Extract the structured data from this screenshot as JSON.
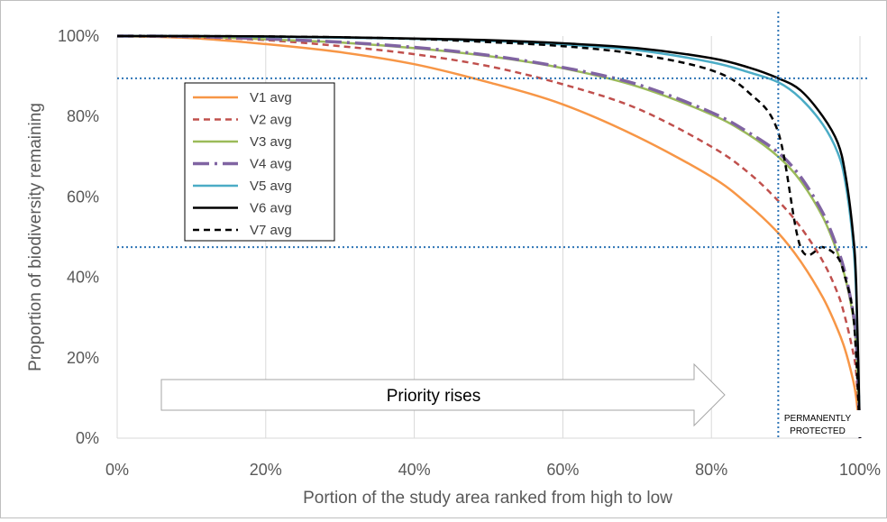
{
  "chart_data": {
    "type": "line",
    "title": "",
    "xlabel": "Portion of the study area ranked from high to low",
    "ylabel": "Proportion of biodiversity remaining",
    "xlim": [
      0,
      100
    ],
    "ylim": [
      0,
      100
    ],
    "x_ticks": [
      "0%",
      "20%",
      "40%",
      "60%",
      "80%",
      "100%"
    ],
    "y_ticks": [
      "0%",
      "20%",
      "40%",
      "60%",
      "80%",
      "100%"
    ],
    "grid": "vertical",
    "legend_position": "upper-left",
    "x": [
      0,
      10,
      20,
      30,
      40,
      50,
      60,
      70,
      80,
      85,
      89,
      92,
      95,
      97,
      98,
      99,
      99.5,
      100
    ],
    "series": [
      {
        "name": "V1 avg",
        "color": "#f79646",
        "dash": "solid",
        "values": [
          100,
          99.5,
          98,
          96,
          93,
          88.5,
          83,
          75,
          65,
          58,
          51,
          44,
          35,
          27,
          22,
          15,
          10,
          0
        ]
      },
      {
        "name": "V2 avg",
        "color": "#c0504d",
        "dash": "dash",
        "values": [
          100,
          99.7,
          99,
          97.5,
          95.5,
          92.5,
          88,
          82,
          72.5,
          66,
          59,
          52.5,
          44,
          36,
          30,
          22,
          16,
          0
        ]
      },
      {
        "name": "V3 avg",
        "color": "#9bbb59",
        "dash": "solid",
        "values": [
          100,
          99.9,
          99.2,
          98.4,
          97,
          95,
          92,
          87.5,
          80.5,
          75.5,
          70,
          64,
          55,
          46,
          40,
          31,
          22,
          0
        ]
      },
      {
        "name": "V4 avg",
        "color": "#8064a2",
        "dash": "longdashdot",
        "values": [
          100,
          99.9,
          99.3,
          98.5,
          97.2,
          95.2,
          92.2,
          88,
          81,
          76,
          71,
          65,
          56,
          47,
          41,
          32,
          24,
          0
        ]
      },
      {
        "name": "V5 avg",
        "color": "#4bacc6",
        "dash": "solid",
        "values": [
          100,
          100,
          99.8,
          99.6,
          99.3,
          98.8,
          97.9,
          96.5,
          93.5,
          91,
          88.5,
          84.5,
          78,
          71,
          64,
          50,
          35,
          0
        ]
      },
      {
        "name": "V6 avg",
        "color": "#000000",
        "dash": "solid",
        "values": [
          100,
          100,
          99.9,
          99.7,
          99.4,
          99,
          98.2,
          97,
          94.5,
          92.2,
          89.5,
          86.5,
          80,
          73.5,
          66,
          52,
          38,
          0
        ]
      },
      {
        "name": "V7 avg",
        "color": "#000000",
        "dash": "dash",
        "values": [
          100,
          100,
          99.9,
          99.7,
          99.3,
          98.5,
          97.5,
          95.5,
          91.5,
          86,
          76,
          47.5,
          47.5,
          45,
          40,
          32,
          20,
          0
        ]
      }
    ],
    "reference_lines": {
      "horizontal": [
        89.5,
        47.5
      ],
      "vertical": [
        89
      ],
      "color": "#2e75b6",
      "style": "dotted"
    },
    "annotations": {
      "arrow_label": "Priority rises",
      "protected_label_line1": "PERMANENTLY",
      "protected_label_line2": "PROTECTED"
    }
  }
}
